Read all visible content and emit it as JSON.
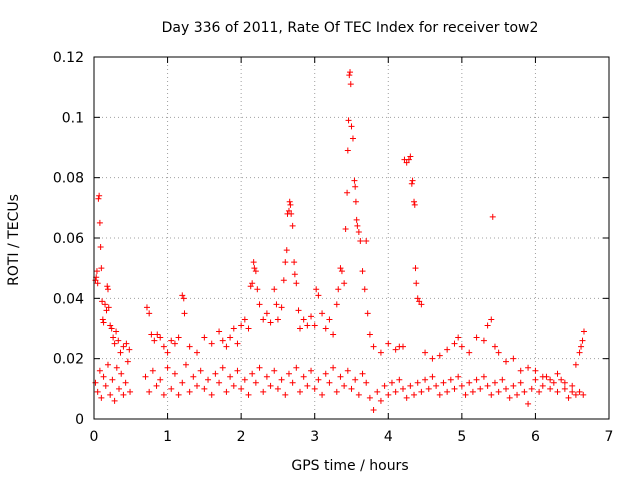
{
  "chart_data": {
    "type": "scatter",
    "title": "Day 336 of 2011, Rate Of TEC Index for receiver tow2",
    "xlabel": "GPS time / hours",
    "ylabel": "ROTI / TECUs",
    "xlim": [
      0,
      7
    ],
    "ylim": [
      0,
      0.12
    ],
    "xticks": [
      0,
      1,
      2,
      3,
      4,
      5,
      6,
      7
    ],
    "yticks": [
      0,
      0.02,
      0.04,
      0.06,
      0.08,
      0.1,
      0.12
    ],
    "xtick_labels": [
      "0",
      "1",
      "2",
      "3",
      "4",
      "5",
      "6",
      "7"
    ],
    "ytick_labels": [
      "0",
      "0.02",
      "0.04",
      "0.06",
      "0.08",
      "0.1",
      "0.12"
    ],
    "grid": true,
    "marker": "plus",
    "color": "#ff0000",
    "series": [
      {
        "name": "ROTI",
        "points": [
          [
            0.02,
            0.046
          ],
          [
            0.03,
            0.047
          ],
          [
            0.04,
            0.049
          ],
          [
            0.05,
            0.045
          ],
          [
            0.06,
            0.073
          ],
          [
            0.07,
            0.074
          ],
          [
            0.08,
            0.065
          ],
          [
            0.09,
            0.057
          ],
          [
            0.1,
            0.05
          ],
          [
            0.11,
            0.039
          ],
          [
            0.12,
            0.033
          ],
          [
            0.13,
            0.032
          ],
          [
            0.15,
            0.038
          ],
          [
            0.17,
            0.036
          ],
          [
            0.18,
            0.044
          ],
          [
            0.19,
            0.043
          ],
          [
            0.2,
            0.037
          ],
          [
            0.22,
            0.031
          ],
          [
            0.24,
            0.03
          ],
          [
            0.26,
            0.027
          ],
          [
            0.28,
            0.025
          ],
          [
            0.3,
            0.029
          ],
          [
            0.33,
            0.026
          ],
          [
            0.36,
            0.022
          ],
          [
            0.4,
            0.024
          ],
          [
            0.44,
            0.025
          ],
          [
            0.48,
            0.023
          ],
          [
            0.72,
            0.037
          ],
          [
            0.75,
            0.035
          ],
          [
            0.78,
            0.028
          ],
          [
            0.82,
            0.026
          ],
          [
            0.86,
            0.028
          ],
          [
            0.9,
            0.027
          ],
          [
            0.95,
            0.024
          ],
          [
            1.0,
            0.022
          ],
          [
            1.05,
            0.026
          ],
          [
            1.1,
            0.025
          ],
          [
            1.15,
            0.027
          ],
          [
            1.2,
            0.041
          ],
          [
            1.22,
            0.04
          ],
          [
            1.23,
            0.035
          ],
          [
            1.3,
            0.024
          ],
          [
            1.4,
            0.022
          ],
          [
            1.5,
            0.027
          ],
          [
            1.6,
            0.025
          ],
          [
            1.7,
            0.029
          ],
          [
            1.75,
            0.026
          ],
          [
            1.8,
            0.024
          ],
          [
            1.85,
            0.027
          ],
          [
            1.9,
            0.03
          ],
          [
            1.95,
            0.025
          ],
          [
            2.0,
            0.031
          ],
          [
            2.05,
            0.033
          ],
          [
            2.1,
            0.03
          ],
          [
            2.13,
            0.044
          ],
          [
            2.15,
            0.045
          ],
          [
            2.17,
            0.052
          ],
          [
            2.18,
            0.05
          ],
          [
            2.2,
            0.049
          ],
          [
            2.22,
            0.043
          ],
          [
            2.25,
            0.038
          ],
          [
            2.3,
            0.033
          ],
          [
            2.35,
            0.035
          ],
          [
            2.4,
            0.032
          ],
          [
            2.45,
            0.043
          ],
          [
            2.48,
            0.038
          ],
          [
            2.5,
            0.033
          ],
          [
            2.55,
            0.037
          ],
          [
            2.58,
            0.046
          ],
          [
            2.6,
            0.052
          ],
          [
            2.62,
            0.056
          ],
          [
            2.63,
            0.068
          ],
          [
            2.65,
            0.069
          ],
          [
            2.66,
            0.072
          ],
          [
            2.67,
            0.071
          ],
          [
            2.68,
            0.068
          ],
          [
            2.7,
            0.064
          ],
          [
            2.72,
            0.052
          ],
          [
            2.73,
            0.048
          ],
          [
            2.75,
            0.045
          ],
          [
            2.78,
            0.036
          ],
          [
            2.8,
            0.03
          ],
          [
            2.85,
            0.033
          ],
          [
            2.9,
            0.031
          ],
          [
            2.95,
            0.034
          ],
          [
            3.0,
            0.031
          ],
          [
            3.02,
            0.043
          ],
          [
            3.05,
            0.041
          ],
          [
            3.1,
            0.035
          ],
          [
            3.15,
            0.03
          ],
          [
            3.2,
            0.033
          ],
          [
            3.25,
            0.028
          ],
          [
            3.3,
            0.038
          ],
          [
            3.32,
            0.043
          ],
          [
            3.35,
            0.05
          ],
          [
            3.37,
            0.049
          ],
          [
            3.4,
            0.045
          ],
          [
            3.42,
            0.063
          ],
          [
            3.44,
            0.075
          ],
          [
            3.45,
            0.089
          ],
          [
            3.46,
            0.099
          ],
          [
            3.47,
            0.114
          ],
          [
            3.48,
            0.115
          ],
          [
            3.49,
            0.111
          ],
          [
            3.5,
            0.097
          ],
          [
            3.52,
            0.093
          ],
          [
            3.54,
            0.079
          ],
          [
            3.55,
            0.077
          ],
          [
            3.56,
            0.072
          ],
          [
            3.57,
            0.066
          ],
          [
            3.58,
            0.064
          ],
          [
            3.6,
            0.062
          ],
          [
            3.62,
            0.059
          ],
          [
            3.65,
            0.049
          ],
          [
            3.68,
            0.043
          ],
          [
            3.7,
            0.059
          ],
          [
            3.72,
            0.035
          ],
          [
            3.75,
            0.028
          ],
          [
            3.8,
            0.024
          ],
          [
            3.9,
            0.022
          ],
          [
            4.0,
            0.025
          ],
          [
            4.1,
            0.023
          ],
          [
            4.15,
            0.024
          ],
          [
            4.2,
            0.024
          ],
          [
            4.22,
            0.086
          ],
          [
            4.25,
            0.085
          ],
          [
            4.28,
            0.086
          ],
          [
            4.3,
            0.087
          ],
          [
            4.32,
            0.078
          ],
          [
            4.33,
            0.079
          ],
          [
            4.35,
            0.072
          ],
          [
            4.36,
            0.071
          ],
          [
            4.37,
            0.05
          ],
          [
            4.38,
            0.045
          ],
          [
            4.4,
            0.04
          ],
          [
            4.42,
            0.039
          ],
          [
            4.45,
            0.038
          ],
          [
            4.5,
            0.022
          ],
          [
            4.6,
            0.02
          ],
          [
            4.7,
            0.021
          ],
          [
            4.8,
            0.023
          ],
          [
            4.9,
            0.025
          ],
          [
            4.95,
            0.027
          ],
          [
            5.0,
            0.024
          ],
          [
            5.1,
            0.022
          ],
          [
            5.2,
            0.027
          ],
          [
            5.3,
            0.026
          ],
          [
            5.35,
            0.031
          ],
          [
            5.4,
            0.033
          ],
          [
            5.42,
            0.067
          ],
          [
            5.45,
            0.024
          ],
          [
            5.5,
            0.022
          ],
          [
            5.6,
            0.019
          ],
          [
            5.7,
            0.02
          ],
          [
            5.8,
            0.016
          ],
          [
            5.9,
            0.017
          ],
          [
            6.0,
            0.016
          ],
          [
            6.1,
            0.014
          ],
          [
            6.2,
            0.013
          ],
          [
            6.3,
            0.015
          ],
          [
            6.4,
            0.012
          ],
          [
            6.5,
            0.011
          ],
          [
            6.55,
            0.018
          ],
          [
            6.6,
            0.022
          ],
          [
            6.62,
            0.024
          ],
          [
            6.64,
            0.026
          ],
          [
            6.66,
            0.029
          ],
          [
            0.02,
            0.012
          ],
          [
            0.05,
            0.009
          ],
          [
            0.08,
            0.016
          ],
          [
            0.1,
            0.007
          ],
          [
            0.13,
            0.014
          ],
          [
            0.16,
            0.011
          ],
          [
            0.19,
            0.018
          ],
          [
            0.22,
            0.008
          ],
          [
            0.25,
            0.013
          ],
          [
            0.28,
            0.006
          ],
          [
            0.31,
            0.017
          ],
          [
            0.34,
            0.01
          ],
          [
            0.37,
            0.015
          ],
          [
            0.4,
            0.008
          ],
          [
            0.43,
            0.012
          ],
          [
            0.46,
            0.019
          ],
          [
            0.49,
            0.009
          ],
          [
            0.7,
            0.014
          ],
          [
            0.75,
            0.009
          ],
          [
            0.8,
            0.016
          ],
          [
            0.85,
            0.011
          ],
          [
            0.9,
            0.013
          ],
          [
            0.95,
            0.008
          ],
          [
            1.0,
            0.017
          ],
          [
            1.05,
            0.01
          ],
          [
            1.1,
            0.015
          ],
          [
            1.15,
            0.008
          ],
          [
            1.2,
            0.012
          ],
          [
            1.25,
            0.018
          ],
          [
            1.3,
            0.009
          ],
          [
            1.35,
            0.014
          ],
          [
            1.4,
            0.011
          ],
          [
            1.45,
            0.016
          ],
          [
            1.5,
            0.01
          ],
          [
            1.55,
            0.013
          ],
          [
            1.6,
            0.008
          ],
          [
            1.65,
            0.015
          ],
          [
            1.7,
            0.012
          ],
          [
            1.75,
            0.017
          ],
          [
            1.8,
            0.009
          ],
          [
            1.85,
            0.014
          ],
          [
            1.9,
            0.011
          ],
          [
            1.95,
            0.016
          ],
          [
            2.0,
            0.01
          ],
          [
            2.05,
            0.013
          ],
          [
            2.1,
            0.008
          ],
          [
            2.15,
            0.015
          ],
          [
            2.2,
            0.012
          ],
          [
            2.25,
            0.017
          ],
          [
            2.3,
            0.009
          ],
          [
            2.35,
            0.014
          ],
          [
            2.4,
            0.011
          ],
          [
            2.45,
            0.016
          ],
          [
            2.5,
            0.01
          ],
          [
            2.55,
            0.013
          ],
          [
            2.6,
            0.008
          ],
          [
            2.65,
            0.015
          ],
          [
            2.7,
            0.012
          ],
          [
            2.75,
            0.017
          ],
          [
            2.8,
            0.009
          ],
          [
            2.85,
            0.014
          ],
          [
            2.9,
            0.011
          ],
          [
            2.95,
            0.016
          ],
          [
            3.0,
            0.01
          ],
          [
            3.05,
            0.013
          ],
          [
            3.1,
            0.008
          ],
          [
            3.15,
            0.015
          ],
          [
            3.2,
            0.012
          ],
          [
            3.25,
            0.017
          ],
          [
            3.3,
            0.009
          ],
          [
            3.35,
            0.014
          ],
          [
            3.4,
            0.011
          ],
          [
            3.45,
            0.016
          ],
          [
            3.5,
            0.01
          ],
          [
            3.55,
            0.013
          ],
          [
            3.6,
            0.008
          ],
          [
            3.65,
            0.015
          ],
          [
            3.7,
            0.012
          ],
          [
            3.75,
            0.007
          ],
          [
            3.8,
            0.003
          ],
          [
            3.85,
            0.009
          ],
          [
            3.9,
            0.006
          ],
          [
            3.95,
            0.011
          ],
          [
            4.0,
            0.008
          ],
          [
            4.05,
            0.012
          ],
          [
            4.1,
            0.009
          ],
          [
            4.15,
            0.013
          ],
          [
            4.2,
            0.01
          ],
          [
            4.25,
            0.007
          ],
          [
            4.3,
            0.011
          ],
          [
            4.35,
            0.008
          ],
          [
            4.4,
            0.012
          ],
          [
            4.45,
            0.009
          ],
          [
            4.5,
            0.013
          ],
          [
            4.55,
            0.01
          ],
          [
            4.6,
            0.014
          ],
          [
            4.65,
            0.011
          ],
          [
            4.7,
            0.008
          ],
          [
            4.75,
            0.012
          ],
          [
            4.8,
            0.009
          ],
          [
            4.85,
            0.013
          ],
          [
            4.9,
            0.01
          ],
          [
            4.95,
            0.014
          ],
          [
            5.0,
            0.011
          ],
          [
            5.05,
            0.008
          ],
          [
            5.1,
            0.012
          ],
          [
            5.15,
            0.009
          ],
          [
            5.2,
            0.013
          ],
          [
            5.25,
            0.01
          ],
          [
            5.3,
            0.014
          ],
          [
            5.35,
            0.011
          ],
          [
            5.4,
            0.008
          ],
          [
            5.45,
            0.012
          ],
          [
            5.5,
            0.009
          ],
          [
            5.55,
            0.013
          ],
          [
            5.6,
            0.01
          ],
          [
            5.65,
            0.007
          ],
          [
            5.7,
            0.011
          ],
          [
            5.75,
            0.008
          ],
          [
            5.8,
            0.012
          ],
          [
            5.85,
            0.009
          ],
          [
            5.9,
            0.005
          ],
          [
            5.95,
            0.01
          ],
          [
            6.0,
            0.013
          ],
          [
            6.05,
            0.009
          ],
          [
            6.1,
            0.011
          ],
          [
            6.15,
            0.014
          ],
          [
            6.2,
            0.01
          ],
          [
            6.25,
            0.012
          ],
          [
            6.3,
            0.009
          ],
          [
            6.35,
            0.013
          ],
          [
            6.4,
            0.01
          ],
          [
            6.45,
            0.007
          ],
          [
            6.5,
            0.009
          ],
          [
            6.55,
            0.008
          ],
          [
            6.6,
            0.009
          ],
          [
            6.65,
            0.008
          ]
        ]
      }
    ]
  }
}
